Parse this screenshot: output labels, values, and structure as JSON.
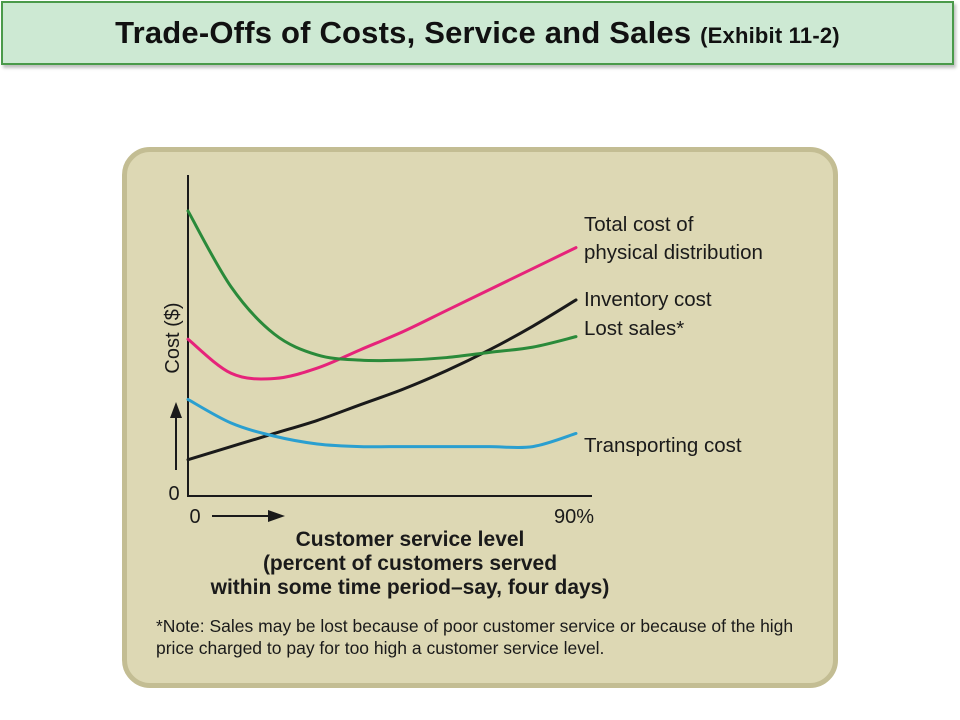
{
  "header": {
    "title": "Trade-Offs of Costs, Service and Sales",
    "subtitle": "(Exhibit 11-2)"
  },
  "chart_data": {
    "type": "line",
    "ylabel": "Cost ($)",
    "y_origin_label": "0",
    "x_tick_labels": [
      "0",
      "90%"
    ],
    "xlabel_lines": [
      "Customer service level",
      "(percent of customers served",
      "within some time period–say, four days)"
    ],
    "x": [
      0,
      10,
      20,
      30,
      40,
      50,
      60,
      70,
      80,
      90
    ],
    "series": [
      {
        "name": "Total cost of physical distribution",
        "color": "#e6237a",
        "label_lines": [
          "Total cost of",
          "physical distribution"
        ],
        "values": [
          53,
          40,
          38,
          42,
          49,
          56,
          64,
          72,
          80,
          88
        ]
      },
      {
        "name": "Inventory cost",
        "color": "#1a1a1a",
        "label_lines": [
          "Inventory cost"
        ],
        "values": [
          7,
          12,
          17,
          22,
          28,
          34,
          41,
          49,
          58,
          68
        ]
      },
      {
        "name": "Lost sales*",
        "color": "#2a8a3a",
        "label_lines": [
          "Lost sales*"
        ],
        "values": [
          102,
          73,
          55,
          47,
          45,
          45,
          46,
          48,
          50,
          54
        ]
      },
      {
        "name": "Transporting cost",
        "color": "#2a9fd0",
        "label_lines": [
          "Transporting cost"
        ],
        "values": [
          30,
          21,
          16,
          13,
          12,
          12,
          12,
          12,
          12,
          17
        ]
      }
    ],
    "ylim": [
      0,
      110
    ],
    "xlim": [
      0,
      90
    ],
    "grid": false,
    "legend": "inline-right"
  },
  "note": {
    "text": "*Note: Sales may be lost because of poor customer service or because of the high price charged to pay for too high a customer service level."
  }
}
